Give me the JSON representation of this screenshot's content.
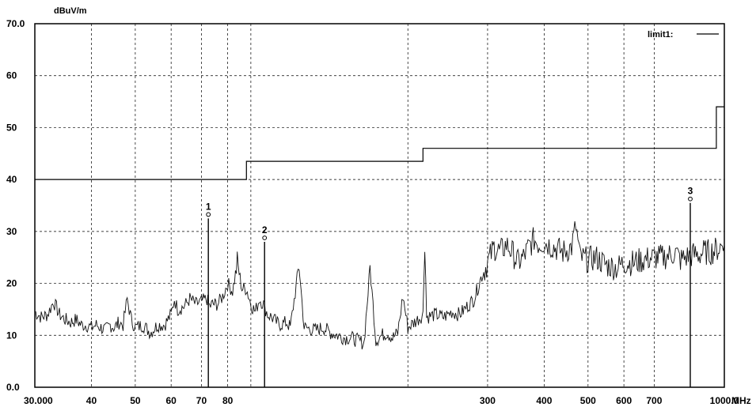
{
  "chart_data": {
    "type": "line",
    "title": "",
    "ylabel": "dBuV/m",
    "xlabel": "MHz",
    "x_scale": "log",
    "xlim": [
      30,
      1000
    ],
    "ylim": [
      0,
      70
    ],
    "grid": true,
    "legend_position": "top-right",
    "y_ticks": [
      "0.0",
      "10",
      "20",
      "30",
      "40",
      "50",
      "60",
      "70.0"
    ],
    "x_ticks": [
      {
        "value": 30,
        "label": "30.000"
      },
      {
        "value": 40,
        "label": "40"
      },
      {
        "value": 50,
        "label": "50"
      },
      {
        "value": 60,
        "label": "60"
      },
      {
        "value": 70,
        "label": "70"
      },
      {
        "value": 80,
        "label": "80"
      },
      {
        "value": 300,
        "label": "300"
      },
      {
        "value": 400,
        "label": "400"
      },
      {
        "value": 500,
        "label": "500"
      },
      {
        "value": 600,
        "label": "600"
      },
      {
        "value": 700,
        "label": "700"
      },
      {
        "value": 1000,
        "label": "1000.0"
      }
    ],
    "series": [
      {
        "name": "limit1:",
        "kind": "limit",
        "points": [
          [
            30,
            40
          ],
          [
            88,
            40
          ],
          [
            88,
            43.5
          ],
          [
            216,
            43.5
          ],
          [
            216,
            46
          ],
          [
            960,
            46
          ],
          [
            960,
            54
          ],
          [
            1000,
            54
          ]
        ]
      },
      {
        "kind": "measurement",
        "points": [
          [
            30,
            14.5
          ],
          [
            31,
            13.5
          ],
          [
            32,
            14
          ],
          [
            33,
            16.5
          ],
          [
            34,
            14
          ],
          [
            35,
            13
          ],
          [
            36,
            12.5
          ],
          [
            37,
            13
          ],
          [
            38,
            12
          ],
          [
            39,
            12
          ],
          [
            40,
            11.5
          ],
          [
            41,
            12
          ],
          [
            42,
            11.5
          ],
          [
            43,
            11
          ],
          [
            44,
            12
          ],
          [
            45,
            11.5
          ],
          [
            46,
            12.5
          ],
          [
            47,
            12
          ],
          [
            48,
            17
          ],
          [
            49,
            13
          ],
          [
            50,
            11.5
          ],
          [
            52,
            12
          ],
          [
            54,
            10.5
          ],
          [
            56,
            12
          ],
          [
            58,
            12
          ],
          [
            60,
            14
          ],
          [
            61,
            17
          ],
          [
            62,
            15
          ],
          [
            64,
            15.5
          ],
          [
            66,
            17
          ],
          [
            68,
            16
          ],
          [
            70,
            16.5
          ],
          [
            72,
            17
          ],
          [
            73,
            15.5
          ],
          [
            74,
            16
          ],
          [
            76,
            16
          ],
          [
            78,
            17.5
          ],
          [
            80,
            20
          ],
          [
            82,
            18.5
          ],
          [
            84,
            24
          ],
          [
            86,
            19
          ],
          [
            88,
            19
          ],
          [
            90,
            16
          ],
          [
            92,
            14.5
          ],
          [
            94,
            17
          ],
          [
            96,
            16
          ],
          [
            98,
            14
          ],
          [
            100,
            13.5
          ],
          [
            104,
            12
          ],
          [
            108,
            12.5
          ],
          [
            110,
            11.5
          ],
          [
            115,
            23.5
          ],
          [
            118,
            11.5
          ],
          [
            125,
            11
          ],
          [
            130,
            11.5
          ],
          [
            135,
            10.5
          ],
          [
            140,
            10
          ],
          [
            145,
            9.5
          ],
          [
            150,
            9.5
          ],
          [
            160,
            8.5
          ],
          [
            165,
            23
          ],
          [
            170,
            9
          ],
          [
            175,
            10
          ],
          [
            180,
            10.5
          ],
          [
            185,
            9.5
          ],
          [
            190,
            10.5
          ],
          [
            195,
            17.5
          ],
          [
            200,
            11.5
          ],
          [
            210,
            13
          ],
          [
            216,
            14
          ],
          [
            218,
            28.5
          ],
          [
            220,
            13.5
          ],
          [
            230,
            14
          ],
          [
            240,
            13.5
          ],
          [
            250,
            14.5
          ],
          [
            260,
            14
          ],
          [
            270,
            15.5
          ],
          [
            280,
            17
          ],
          [
            285,
            19
          ],
          [
            290,
            21
          ],
          [
            300,
            24
          ],
          [
            310,
            27
          ],
          [
            320,
            26
          ],
          [
            330,
            27.5
          ],
          [
            340,
            26
          ],
          [
            350,
            24
          ],
          [
            360,
            25
          ],
          [
            370,
            27
          ],
          [
            380,
            28.5
          ],
          [
            390,
            27.5
          ],
          [
            400,
            28
          ],
          [
            420,
            27
          ],
          [
            440,
            26
          ],
          [
            460,
            27
          ],
          [
            470,
            31
          ],
          [
            480,
            25
          ],
          [
            500,
            24.5
          ],
          [
            520,
            25
          ],
          [
            550,
            23.5
          ],
          [
            580,
            23
          ],
          [
            600,
            24
          ],
          [
            630,
            24
          ],
          [
            660,
            24.5
          ],
          [
            700,
            25
          ],
          [
            730,
            25
          ],
          [
            760,
            25.5
          ],
          [
            780,
            26
          ],
          [
            800,
            24.5
          ],
          [
            820,
            25
          ],
          [
            850,
            25.5
          ],
          [
            880,
            25.5
          ],
          [
            900,
            26
          ],
          [
            930,
            26
          ],
          [
            960,
            26.5
          ],
          [
            1000,
            27.5
          ]
        ]
      }
    ],
    "markers": [
      {
        "label": "1",
        "x": 72.5,
        "y": 32.5
      },
      {
        "label": "2",
        "x": 96.5,
        "y": 28
      },
      {
        "label": "3",
        "x": 841,
        "y": 35.5
      }
    ]
  }
}
